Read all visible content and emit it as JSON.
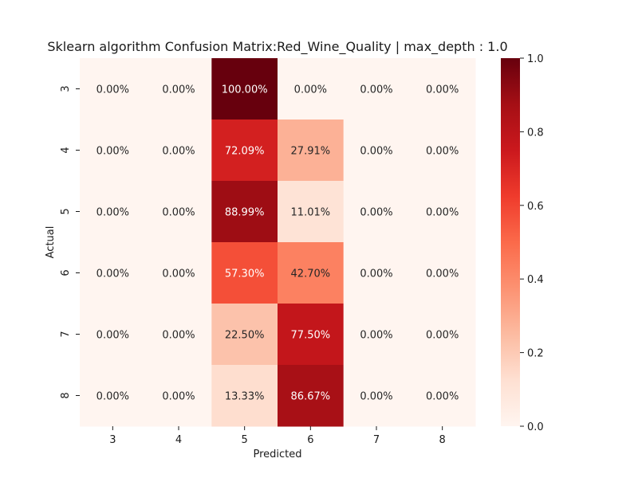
{
  "chart_data": {
    "type": "heatmap",
    "title": "Sklearn algorithm Confusion Matrix:Red_Wine_Quality | max_depth : 1.0",
    "xlabel": "Predicted",
    "ylabel": "Actual",
    "x_categories": [
      "3",
      "4",
      "5",
      "6",
      "7",
      "8"
    ],
    "y_categories": [
      "3",
      "4",
      "5",
      "6",
      "7",
      "8"
    ],
    "values": [
      [
        0.0,
        0.0,
        1.0,
        0.0,
        0.0,
        0.0
      ],
      [
        0.0,
        0.0,
        0.7209,
        0.2791,
        0.0,
        0.0
      ],
      [
        0.0,
        0.0,
        0.8899,
        0.1101,
        0.0,
        0.0
      ],
      [
        0.0,
        0.0,
        0.573,
        0.427,
        0.0,
        0.0
      ],
      [
        0.0,
        0.0,
        0.225,
        0.775,
        0.0,
        0.0
      ],
      [
        0.0,
        0.0,
        0.1333,
        0.8667,
        0.0,
        0.0
      ]
    ],
    "annotations": [
      [
        "0.00%",
        "0.00%",
        "100.00%",
        "0.00%",
        "0.00%",
        "0.00%"
      ],
      [
        "0.00%",
        "0.00%",
        "72.09%",
        "27.91%",
        "0.00%",
        "0.00%"
      ],
      [
        "0.00%",
        "0.00%",
        "88.99%",
        "11.01%",
        "0.00%",
        "0.00%"
      ],
      [
        "0.00%",
        "0.00%",
        "57.30%",
        "42.70%",
        "0.00%",
        "0.00%"
      ],
      [
        "0.00%",
        "0.00%",
        "22.50%",
        "77.50%",
        "0.00%",
        "0.00%"
      ],
      [
        "0.00%",
        "0.00%",
        "13.33%",
        "86.67%",
        "0.00%",
        "0.00%"
      ]
    ],
    "colormap": "Reds",
    "color_range": [
      0.0,
      1.0
    ],
    "colorbar_ticks": [
      "0.0",
      "0.2",
      "0.4",
      "0.6",
      "0.8",
      "1.0"
    ],
    "grid": false,
    "colorbar_position": "right"
  }
}
